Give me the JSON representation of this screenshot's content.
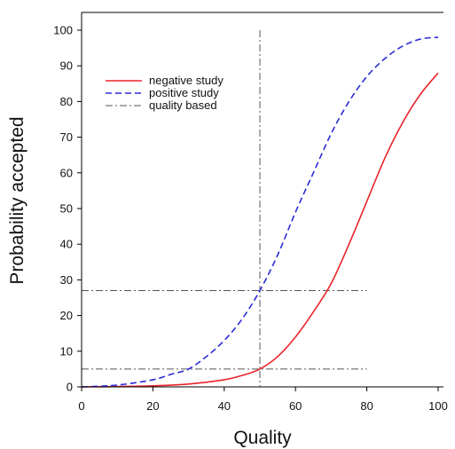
{
  "chart_data": {
    "type": "line",
    "title": "",
    "xlabel": "Quality",
    "ylabel": "Probability accepted",
    "xlim": [
      0,
      100
    ],
    "ylim": [
      0,
      100
    ],
    "x_ticks": [
      0,
      20,
      40,
      60,
      80,
      100
    ],
    "y_ticks": [
      0,
      10,
      20,
      30,
      40,
      50,
      60,
      70,
      80,
      90,
      100
    ],
    "grid": false,
    "legend_position": "top-left",
    "series": [
      {
        "name": "negative study",
        "color": "#e8242a",
        "style": "solid",
        "x": [
          0,
          10,
          20,
          30,
          40,
          45,
          50,
          55,
          60,
          65,
          70,
          75,
          80,
          85,
          90,
          95,
          100
        ],
        "y": [
          0,
          0.1,
          0.3,
          0.8,
          2,
          3.2,
          5,
          8.5,
          14,
          21,
          29,
          40,
          52,
          64,
          74,
          82,
          88
        ]
      },
      {
        "name": "positive study",
        "color": "#2b2bd6",
        "style": "dashed",
        "x": [
          0,
          10,
          20,
          25,
          30,
          35,
          40,
          45,
          50,
          55,
          60,
          65,
          70,
          75,
          80,
          85,
          90,
          95,
          100
        ],
        "y": [
          0,
          0.5,
          2,
          3.5,
          5,
          8.5,
          13,
          19,
          27,
          37,
          49,
          60,
          71,
          80,
          87,
          92,
          95.5,
          97.5,
          98
        ]
      }
    ],
    "reference_lines": {
      "name": "quality based",
      "color": "#555555",
      "style": "dashdot",
      "vertical": [
        {
          "x": 50,
          "y_from": 0,
          "y_to": 100
        }
      ],
      "horizontal": [
        {
          "y": 27,
          "x_from": 0,
          "x_to": 80
        },
        {
          "y": 5,
          "x_from": 0,
          "x_to": 80
        }
      ]
    },
    "legend": [
      "negative study",
      "positive study",
      "quality based"
    ]
  }
}
